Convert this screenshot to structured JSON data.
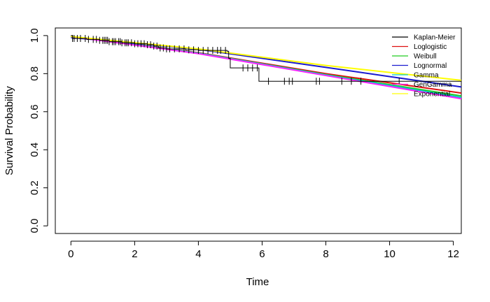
{
  "chart_data": {
    "type": "line",
    "title": "",
    "xlabel": "Time",
    "ylabel": "Survival Probability",
    "xlim": [
      -0.49,
      12.25
    ],
    "ylim": [
      -0.04,
      1.04
    ],
    "x_ticks": [
      0,
      2,
      4,
      6,
      8,
      10,
      12
    ],
    "y_ticks": [
      0.0,
      0.2,
      0.4,
      0.6,
      0.8,
      1.0
    ],
    "x_tick_labels": [
      "0",
      "2",
      "4",
      "6",
      "8",
      "10",
      "12"
    ],
    "y_tick_labels": [
      "0.0",
      "0.2",
      "0.4",
      "0.6",
      "0.8",
      "1.0"
    ],
    "grid": false,
    "legend_position": "top-right",
    "km": {
      "name": "Kaplan-Meier",
      "color": "#000000",
      "steps": [
        [
          0,
          1.0
        ],
        [
          0.05,
          0.985
        ],
        [
          0.5,
          0.98
        ],
        [
          0.9,
          0.975
        ],
        [
          1.2,
          0.968
        ],
        [
          1.6,
          0.962
        ],
        [
          2.0,
          0.957
        ],
        [
          2.4,
          0.952
        ],
        [
          2.6,
          0.945
        ],
        [
          2.75,
          0.935
        ],
        [
          3.0,
          0.93
        ],
        [
          3.6,
          0.925
        ],
        [
          4.0,
          0.922
        ],
        [
          4.9,
          0.918
        ],
        [
          4.95,
          0.88
        ],
        [
          5.0,
          0.83
        ],
        [
          5.9,
          0.76
        ],
        [
          12.25,
          0.76
        ]
      ],
      "censor_times": [
        0.05,
        0.1,
        0.2,
        0.3,
        0.45,
        0.55,
        0.7,
        0.8,
        0.9,
        1.0,
        1.05,
        1.1,
        1.15,
        1.2,
        1.3,
        1.35,
        1.4,
        1.5,
        1.55,
        1.6,
        1.7,
        1.75,
        1.8,
        1.9,
        2.0,
        2.1,
        2.2,
        2.3,
        2.4,
        2.5,
        2.6,
        2.7,
        2.8,
        2.9,
        3.0,
        3.1,
        3.25,
        3.4,
        3.55,
        3.7,
        3.85,
        4.0,
        4.15,
        4.3,
        4.45,
        4.6,
        4.7,
        4.85,
        5.4,
        5.55,
        5.7,
        5.85,
        6.2,
        6.7,
        6.85,
        6.95,
        7.7,
        7.8,
        8.5,
        8.8,
        9.1,
        10.3
      ]
    },
    "series": [
      {
        "name": "Loglogistic",
        "color": "#dd1111",
        "x": [
          0,
          4,
          8,
          12.25
        ],
        "values": [
          0.995,
          0.91,
          0.8,
          0.698
        ]
      },
      {
        "name": "Weibull",
        "color": "#22cc22",
        "x": [
          0,
          4,
          8,
          12.25
        ],
        "values": [
          0.995,
          0.908,
          0.795,
          0.683
        ]
      },
      {
        "name": "Lognormal",
        "color": "#1a1ad0",
        "x": [
          0,
          4,
          8,
          12.25
        ],
        "values": [
          0.99,
          0.928,
          0.833,
          0.73
        ]
      },
      {
        "name": "Gamma",
        "color": "#00cccc",
        "x": [
          0,
          4,
          8,
          12.25
        ],
        "values": [
          0.995,
          0.908,
          0.793,
          0.675
        ]
      },
      {
        "name": "GenGamma",
        "color": "#ff22ff",
        "x": [
          0,
          4,
          8,
          12.25
        ],
        "values": [
          0.995,
          0.905,
          0.79,
          0.668
        ]
      },
      {
        "name": "Exponential",
        "color": "#ffff00",
        "x": [
          0,
          4,
          8,
          12.25
        ],
        "values": [
          0.995,
          0.93,
          0.843,
          0.765
        ]
      }
    ]
  }
}
